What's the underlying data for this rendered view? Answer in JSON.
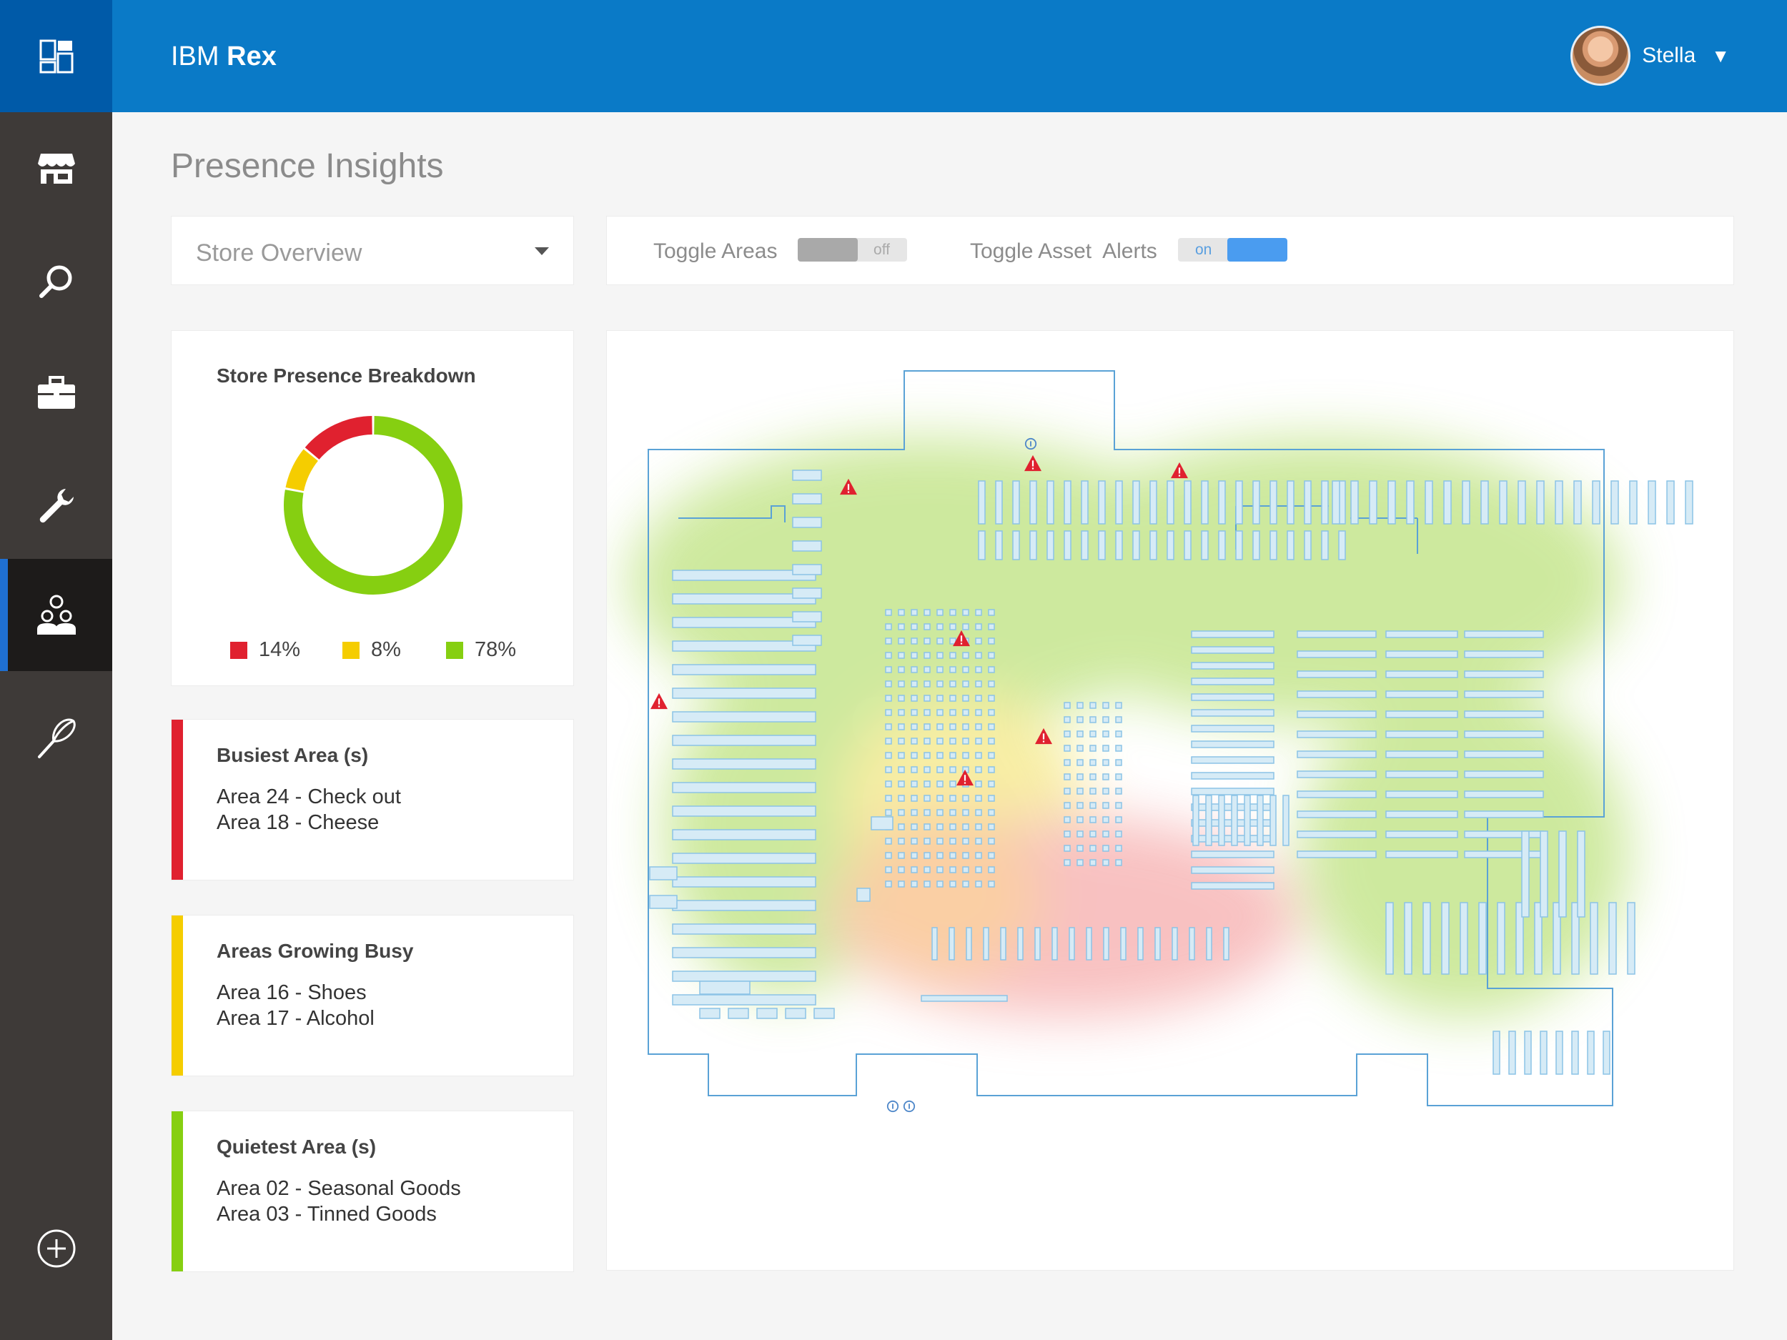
{
  "app": {
    "brand_prefix": "IBM",
    "brand_name": "Rex"
  },
  "user": {
    "name": "Stella"
  },
  "sidebar": {
    "items": [
      {
        "icon": "dashboard-icon"
      },
      {
        "icon": "store-icon"
      },
      {
        "icon": "search-icon"
      },
      {
        "icon": "briefcase-icon"
      },
      {
        "icon": "wrench-icon"
      },
      {
        "icon": "people-icon",
        "active": true
      },
      {
        "icon": "whisk-icon"
      },
      {
        "icon": "add-icon"
      }
    ]
  },
  "page": {
    "title": "Presence Insights"
  },
  "store_select": {
    "value": "Store Overview"
  },
  "toggles": {
    "areas": {
      "label": "Toggle Areas",
      "state": "off"
    },
    "asset_alerts": {
      "label": "Toggle Asset  Alerts",
      "state": "on"
    }
  },
  "breakdown": {
    "title": "Store Presence Breakdown",
    "segments": [
      {
        "label": "14%",
        "value": 14,
        "color": "#e0212f"
      },
      {
        "label": "8%",
        "value": 8,
        "color": "#f5cd00"
      },
      {
        "label": "78%",
        "value": 78,
        "color": "#86cf11"
      }
    ]
  },
  "cards": {
    "busiest": {
      "title": "Busiest Area (s)",
      "line1": "Area 24 - Check out",
      "line2": "Area 18 - Cheese",
      "color": "#e0212f"
    },
    "growing": {
      "title": "Areas Growing Busy",
      "line1": "Area 16 - Shoes",
      "line2": "Area 17 - Alcohol",
      "color": "#f5cd00"
    },
    "quietest": {
      "title": "Quietest Area (s)",
      "line1": "Area 02 - Seasonal Goods",
      "line2": "Area 03 - Tinned Goods",
      "color": "#86cf11"
    }
  },
  "map": {
    "alert_icon": "warning-triangle-icon",
    "info_icon": "info-icon"
  }
}
